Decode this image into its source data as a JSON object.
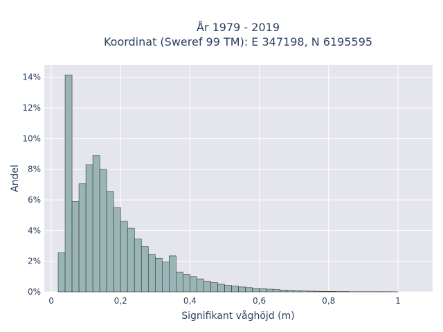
{
  "chart_data": {
    "type": "bar",
    "title": [
      "År 1979 - 2019",
      "Koordinat (Sweref 99 TM): E 347198, N 6195595"
    ],
    "xlabel": "Signifikant våghöjd (m)",
    "ylabel": "Andel",
    "xlim": [
      -0.02,
      1.1
    ],
    "ylim": [
      0,
      14.8
    ],
    "bin_width": 0.02,
    "bin_start": 0.02,
    "values": [
      2.55,
      14.15,
      5.9,
      7.05,
      8.3,
      8.9,
      8.0,
      6.55,
      5.5,
      4.6,
      4.15,
      3.45,
      2.95,
      2.45,
      2.2,
      1.95,
      2.35,
      1.3,
      1.15,
      1.0,
      0.85,
      0.7,
      0.6,
      0.5,
      0.42,
      0.38,
      0.32,
      0.28,
      0.22,
      0.2,
      0.18,
      0.15,
      0.12,
      0.1,
      0.08,
      0.06,
      0.05,
      0.04,
      0.03,
      0.03,
      0.02,
      0.02,
      0.01,
      0.01,
      0.01,
      0.01,
      0.01,
      0.01,
      0.005
    ],
    "x_ticks": [
      0,
      0.2,
      0.4,
      0.6,
      0.8,
      1
    ],
    "x_tick_labels": [
      "0",
      "0,2",
      "0,4",
      "0,6",
      "0,8",
      "1"
    ],
    "y_ticks": [
      0,
      2,
      4,
      6,
      8,
      10,
      12,
      14
    ],
    "y_tick_labels": [
      "0%",
      "2%",
      "4%",
      "6%",
      "8%",
      "10%",
      "12%",
      "14%"
    ],
    "grid": true,
    "bar_color": "#9ab5b5",
    "bar_edge_color": "#333333",
    "plot_bg_color": "#e5e5ee"
  }
}
